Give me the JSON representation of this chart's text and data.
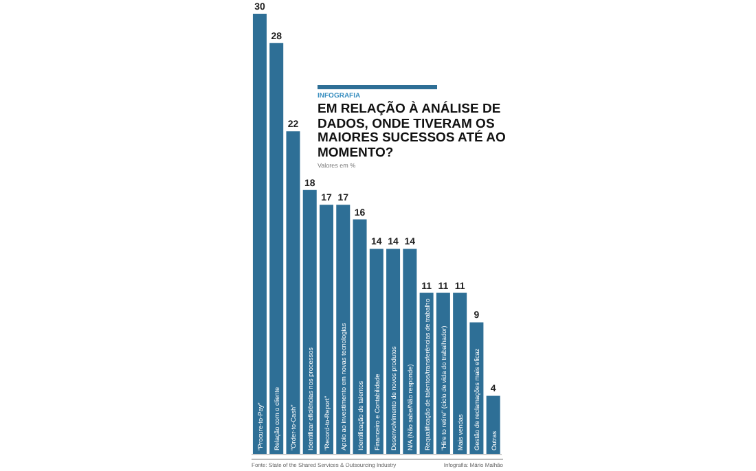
{
  "chart_data": {
    "type": "bar",
    "title": "EM RELAÇÃO À ANÁLISE DE DADOS, ONDE TIVERAM OS MAIORES SUCESSOS ATÉ AO MOMENTO?",
    "subtitle": "Valores em %",
    "annotations": [
      "INFOGRAFIA",
      "Fonte: State of the Shared Services & Outsourcing Industry",
      "Infografia: Mário Malhão"
    ],
    "categories": [
      "\"Procure-to-Pay\"",
      "Relação com o cliente",
      "\"Order-to-Cash\"",
      "Identificar eficiências nos processos",
      "\"Record-to-Report\"",
      "Apoio ao investimento em novas tecnologias",
      "Identificação de talentos",
      "Financeiro e Contabilidade",
      "Desenvolvimento de novos produtos",
      "N/A (Não sabe/Não responde)",
      "Requalificação de talentos/transferências de trabalho",
      "\"Hire to retire\" (ciclo de vida do trabalhador)",
      "Mais vendas",
      "Gestão de reclamações mais eficaz",
      "Outras"
    ],
    "values": [
      30,
      28,
      22,
      18,
      17,
      17,
      16,
      14,
      14,
      14,
      11,
      11,
      11,
      9,
      4
    ],
    "color": "#2e6f96",
    "data_labels": true
  }
}
